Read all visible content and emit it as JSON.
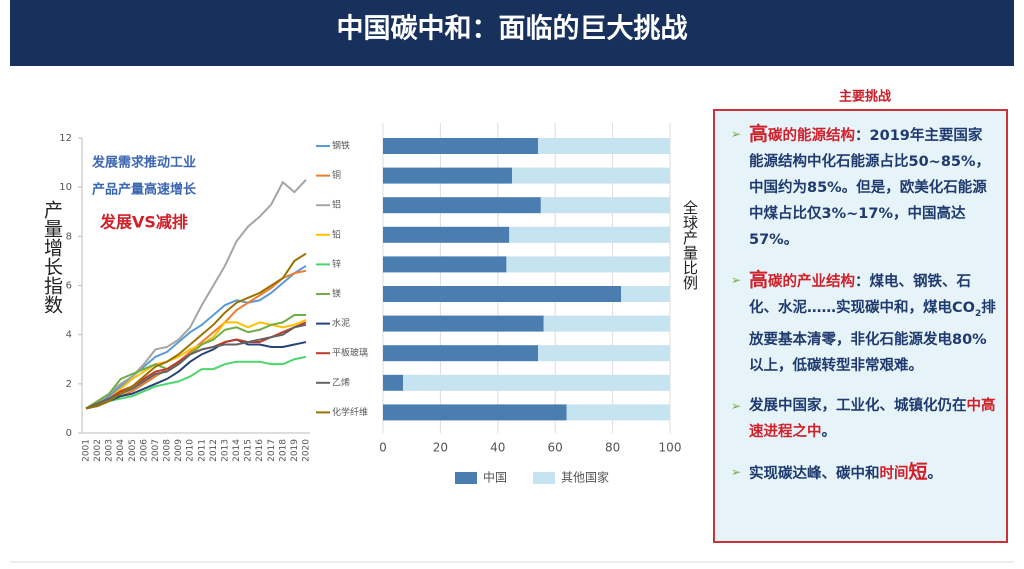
{
  "header": {
    "title": "中国碳中和：面临的巨大挑战"
  },
  "chart_data": [
    {
      "type": "line",
      "ylabel": "产量增长指数",
      "annotations": [
        "发展需求推动工业",
        "产品产量高速增长",
        "发展VS减排"
      ],
      "categories": [
        "2001",
        "2002",
        "2003",
        "2004",
        "2005",
        "2006",
        "2007",
        "2008",
        "2009",
        "2010",
        "2011",
        "2012",
        "2013",
        "2014",
        "2015",
        "2016",
        "2017",
        "2018",
        "2019",
        "2020"
      ],
      "ylim": [
        0,
        12
      ],
      "yticks": [
        0,
        2,
        4,
        6,
        8,
        10,
        12
      ],
      "series": [
        {
          "name": "钢铁",
          "color": "#5b9bd5",
          "values": [
            1,
            1.2,
            1.5,
            1.9,
            2.3,
            2.7,
            3.1,
            3.3,
            3.7,
            4.1,
            4.4,
            4.8,
            5.2,
            5.4,
            5.3,
            5.4,
            5.7,
            6.1,
            6.5,
            6.8
          ]
        },
        {
          "name": "铜",
          "color": "#ed7d31",
          "values": [
            1,
            1.1,
            1.3,
            1.5,
            1.7,
            2,
            2.3,
            2.6,
            2.9,
            3.3,
            3.7,
            4.1,
            4.5,
            5,
            5.3,
            5.6,
            5.9,
            6.3,
            6.5,
            6.6
          ]
        },
        {
          "name": "铝",
          "color": "#a5a5a5",
          "values": [
            1,
            1.2,
            1.6,
            2,
            2.3,
            2.8,
            3.4,
            3.5,
            3.8,
            4.3,
            5.2,
            6,
            6.8,
            7.8,
            8.4,
            8.8,
            9.3,
            10.2,
            9.8,
            10.3
          ]
        },
        {
          "name": "铅",
          "color": "#ffc000",
          "values": [
            1,
            1.2,
            1.4,
            1.8,
            2.2,
            2.5,
            2.8,
            2.9,
            3.1,
            3.4,
            3.6,
            3.9,
            4.5,
            4.5,
            4.3,
            4.5,
            4.4,
            4.3,
            4.4,
            4.6
          ]
        },
        {
          "name": "锌",
          "color": "#4bd66b",
          "values": [
            1,
            1.1,
            1.3,
            1.4,
            1.5,
            1.7,
            1.9,
            2,
            2.1,
            2.3,
            2.6,
            2.6,
            2.8,
            2.9,
            2.9,
            2.9,
            2.8,
            2.8,
            3,
            3.1
          ]
        },
        {
          "name": "镁",
          "color": "#70ad47",
          "values": [
            1,
            1.3,
            1.6,
            2.2,
            2.4,
            2.6,
            2.8,
            2.6,
            2.8,
            3.2,
            3.6,
            3.8,
            4.2,
            4.3,
            4.1,
            4.2,
            4.4,
            4.5,
            4.8,
            4.8
          ]
        },
        {
          "name": "水泥",
          "color": "#264478",
          "values": [
            1,
            1.1,
            1.3,
            1.5,
            1.6,
            1.8,
            2,
            2.2,
            2.5,
            2.9,
            3.2,
            3.4,
            3.7,
            3.8,
            3.6,
            3.6,
            3.5,
            3.5,
            3.6,
            3.7
          ]
        },
        {
          "name": "平板玻璃",
          "color": "#c0392b",
          "values": [
            1,
            1.2,
            1.4,
            1.7,
            1.9,
            2.2,
            2.5,
            2.6,
            2.9,
            3.2,
            3.4,
            3.5,
            3.7,
            3.8,
            3.7,
            3.7,
            3.9,
            4.1,
            4.3,
            4.5
          ]
        },
        {
          "name": "乙烯",
          "color": "#636363",
          "values": [
            1,
            1.2,
            1.4,
            1.6,
            1.8,
            2.1,
            2.4,
            2.5,
            2.8,
            3.2,
            3.4,
            3.5,
            3.6,
            3.6,
            3.7,
            3.8,
            3.9,
            4,
            4.3,
            4.4
          ]
        },
        {
          "name": "化学纤维",
          "color": "#997300",
          "values": [
            1,
            1.1,
            1.3,
            1.6,
            1.9,
            2.3,
            2.7,
            2.9,
            3.2,
            3.6,
            4,
            4.4,
            4.9,
            5.3,
            5.5,
            5.7,
            6,
            6.3,
            7,
            7.3
          ]
        }
      ]
    },
    {
      "type": "bar",
      "orientation": "horizontal",
      "stacked": true,
      "xlabel": "全球产量比例",
      "xlim": [
        0,
        100
      ],
      "xticks": [
        0,
        20,
        40,
        60,
        80,
        100
      ],
      "series": [
        {
          "name": "中国",
          "color": "#4a7eb0",
          "values": [
            54,
            45,
            55,
            44,
            43,
            83,
            56,
            54,
            7,
            64
          ]
        },
        {
          "name": "其他国家",
          "color": "#c5e3f0",
          "values": [
            46,
            55,
            45,
            56,
            57,
            17,
            44,
            46,
            93,
            36
          ]
        }
      ]
    }
  ],
  "panel": {
    "title": "主要挑战",
    "items": [
      [
        "高",
        "碳的能源结构",
        "：2019年主要国家能源结构中化石能源占比50~85%，中国约为85%。但是，欧美化石能源中煤占比仅3%~17%，中国高达57%。"
      ],
      [
        "高",
        "碳的产业结构",
        "：煤电、钢铁、石化、水泥……实现碳中和，煤电CO",
        "2",
        "排放要基本清零，非化石能源发电80%以上，低碳转型非常艰难。"
      ],
      [
        "发展中国家，工业化、城镇化仍在",
        "中高速进程之中",
        "。"
      ],
      [
        "实现碳达峰、碳中和",
        "时间",
        "短",
        "。"
      ]
    ]
  }
}
